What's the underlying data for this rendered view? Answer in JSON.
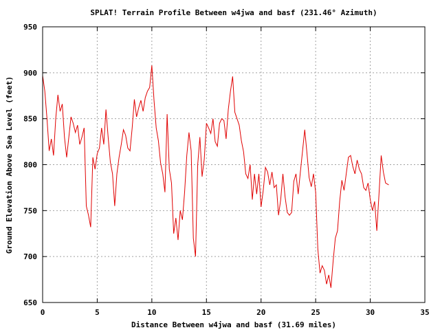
{
  "chart_data": {
    "type": "line",
    "title": "SPLAT! Terrain Profile Between w4jwa and basf (231.46° Azimuth)",
    "xlabel": "Distance Between w4jwa and basf (31.69 miles)",
    "ylabel": "Ground Elevation Above Sea Level (feet)",
    "xlim": [
      0,
      35
    ],
    "ylim": [
      650,
      950
    ],
    "xticks": [
      0,
      5,
      10,
      15,
      20,
      25,
      30,
      35
    ],
    "yticks": [
      650,
      700,
      750,
      800,
      850,
      900,
      950
    ],
    "grid": true,
    "series_color": "#e00000",
    "series": [
      {
        "x": [
          0.0,
          0.2,
          0.4,
          0.6,
          0.8,
          1.0,
          1.2,
          1.4,
          1.6,
          1.8,
          2.0,
          2.2,
          2.4,
          2.6,
          2.8,
          3.0,
          3.2,
          3.4,
          3.6,
          3.8,
          4.0,
          4.2,
          4.4,
          4.6,
          4.8,
          5.0,
          5.2,
          5.4,
          5.6,
          5.8,
          6.0,
          6.2,
          6.4,
          6.6,
          6.8,
          7.0,
          7.2,
          7.4,
          7.6,
          7.8,
          8.0,
          8.2,
          8.4,
          8.6,
          8.8,
          9.0,
          9.2,
          9.4,
          9.6,
          9.8,
          10.0,
          10.2,
          10.4,
          10.6,
          10.8,
          11.0,
          11.2,
          11.4,
          11.6,
          11.8,
          12.0,
          12.2,
          12.4,
          12.6,
          12.8,
          13.0,
          13.2,
          13.4,
          13.6,
          13.8,
          14.0,
          14.2,
          14.4,
          14.6,
          14.8,
          15.0,
          15.2,
          15.4,
          15.6,
          15.8,
          16.0,
          16.2,
          16.4,
          16.6,
          16.8,
          17.0,
          17.2,
          17.4,
          17.6,
          17.8,
          18.0,
          18.2,
          18.4,
          18.6,
          18.8,
          19.0,
          19.2,
          19.4,
          19.6,
          19.8,
          20.0,
          20.2,
          20.4,
          20.6,
          20.8,
          21.0,
          21.2,
          21.4,
          21.6,
          21.8,
          22.0,
          22.2,
          22.4,
          22.6,
          22.8,
          23.0,
          23.2,
          23.4,
          23.6,
          23.8,
          24.0,
          24.2,
          24.4,
          24.6,
          24.8,
          25.0,
          25.2,
          25.4,
          25.6,
          25.8,
          26.0,
          26.2,
          26.4,
          26.6,
          26.8,
          27.0,
          27.2,
          27.4,
          27.6,
          27.8,
          28.0,
          28.2,
          28.4,
          28.6,
          28.8,
          29.0,
          29.2,
          29.4,
          29.6,
          29.8,
          30.0,
          30.2,
          30.4,
          30.6,
          30.8,
          31.0,
          31.2,
          31.4,
          31.69
        ],
        "values": [
          897,
          880,
          850,
          815,
          828,
          810,
          850,
          876,
          858,
          866,
          830,
          808,
          830,
          852,
          845,
          835,
          843,
          822,
          830,
          840,
          755,
          745,
          732,
          808,
          795,
          812,
          818,
          840,
          822,
          860,
          830,
          803,
          790,
          755,
          790,
          808,
          822,
          838,
          832,
          818,
          815,
          840,
          871,
          852,
          862,
          870,
          858,
          873,
          880,
          884,
          908,
          870,
          840,
          826,
          802,
          790,
          770,
          855,
          795,
          780,
          725,
          742,
          718,
          750,
          740,
          770,
          810,
          835,
          815,
          720,
          700,
          800,
          830,
          787,
          806,
          845,
          840,
          834,
          850,
          825,
          820,
          845,
          850,
          848,
          828,
          860,
          880,
          896,
          857,
          850,
          843,
          826,
          814,
          790,
          785,
          800,
          762,
          790,
          768,
          790,
          754,
          772,
          797,
          792,
          778,
          792,
          775,
          778,
          745,
          762,
          790,
          765,
          748,
          745,
          748,
          782,
          790,
          768,
          792,
          815,
          838,
          813,
          786,
          776,
          790,
          770,
          708,
          682,
          690,
          685,
          670,
          680,
          666,
          695,
          720,
          728,
          760,
          783,
          772,
          790,
          808,
          810,
          798,
          790,
          805,
          795,
          790,
          775,
          772,
          780,
          762,
          750,
          760,
          728,
          768,
          810,
          792,
          780,
          778
        ]
      }
    ]
  }
}
